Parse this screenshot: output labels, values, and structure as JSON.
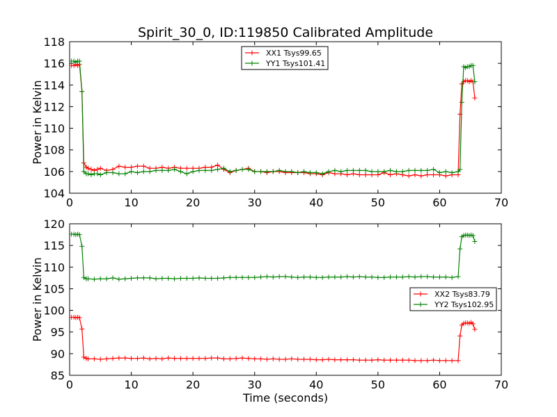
{
  "chart_data": [
    {
      "type": "line",
      "title": "Spirit_30_0, ID:119850 Calibrated Amplitude",
      "xlabel": "",
      "ylabel": "Power in Kelvin",
      "xlim": [
        0,
        70
      ],
      "ylim": [
        104,
        118
      ],
      "xticks": [
        "0",
        "10",
        "20",
        "30",
        "40",
        "50",
        "60",
        "70"
      ],
      "yticks": [
        "104",
        "106",
        "108",
        "110",
        "112",
        "114",
        "116",
        "118"
      ],
      "grid": false,
      "legend_position": "top-center",
      "series": [
        {
          "name": "XX1 Tsys99.65",
          "color": "#ff0000",
          "x": [
            0.3,
            0.7,
            1.0,
            1.3,
            1.6,
            2.0,
            2.3,
            2.7,
            3.0,
            3.5,
            4.0,
            4.5,
            5.0,
            6.0,
            7.0,
            8.0,
            9.0,
            10.0,
            11.0,
            12.0,
            13.0,
            14.0,
            15.0,
            16.0,
            17.0,
            18.0,
            19.0,
            20.0,
            21.0,
            22.0,
            23.0,
            24.0,
            25.0,
            26.0,
            27.0,
            28.0,
            29.0,
            30.0,
            31.0,
            32.0,
            33.0,
            34.0,
            35.0,
            36.0,
            37.0,
            38.0,
            39.0,
            40.0,
            41.0,
            42.0,
            43.0,
            44.0,
            45.0,
            46.0,
            47.0,
            48.0,
            49.0,
            50.0,
            51.0,
            52.0,
            53.0,
            54.0,
            55.0,
            56.0,
            57.0,
            58.0,
            59.0,
            60.0,
            61.0,
            62.0,
            63.0,
            63.3,
            63.6,
            63.9,
            64.2,
            64.5,
            64.8,
            65.1,
            65.4,
            65.7
          ],
          "y": [
            115.8,
            115.8,
            115.9,
            115.8,
            115.9,
            113.4,
            106.8,
            106.4,
            106.3,
            106.2,
            106.1,
            106.2,
            106.3,
            106.1,
            106.2,
            106.5,
            106.4,
            106.4,
            106.5,
            106.5,
            106.3,
            106.3,
            106.4,
            106.3,
            106.4,
            106.3,
            106.3,
            106.3,
            106.3,
            106.4,
            106.4,
            106.6,
            106.2,
            105.9,
            106.1,
            106.2,
            106.3,
            106.0,
            106.0,
            105.9,
            106.0,
            106.0,
            105.9,
            105.9,
            105.9,
            105.9,
            105.8,
            105.8,
            105.7,
            105.9,
            105.8,
            105.8,
            105.7,
            105.8,
            105.7,
            105.7,
            105.7,
            105.7,
            105.9,
            105.7,
            105.8,
            105.7,
            105.6,
            105.7,
            105.6,
            105.7,
            105.7,
            105.7,
            105.6,
            105.7,
            105.7,
            111.3,
            114.1,
            114.3,
            114.4,
            114.4,
            114.3,
            114.4,
            114.3,
            112.8
          ]
        },
        {
          "name": "YY1 Tsys101.41",
          "color": "#008000",
          "x": [
            0.3,
            0.7,
            1.0,
            1.3,
            1.6,
            2.0,
            2.3,
            2.7,
            3.0,
            3.5,
            4.0,
            4.5,
            5.0,
            6.0,
            7.0,
            8.0,
            9.0,
            10.0,
            11.0,
            12.0,
            13.0,
            14.0,
            15.0,
            16.0,
            17.0,
            18.0,
            19.0,
            20.0,
            21.0,
            22.0,
            23.0,
            24.0,
            25.0,
            26.0,
            27.0,
            28.0,
            29.0,
            30.0,
            31.0,
            32.0,
            33.0,
            34.0,
            35.0,
            36.0,
            37.0,
            38.0,
            39.0,
            40.0,
            41.0,
            42.0,
            43.0,
            44.0,
            45.0,
            46.0,
            47.0,
            48.0,
            49.0,
            50.0,
            51.0,
            52.0,
            53.0,
            54.0,
            55.0,
            56.0,
            57.0,
            58.0,
            59.0,
            60.0,
            61.0,
            62.0,
            63.0,
            63.3,
            63.6,
            63.9,
            64.2,
            64.5,
            64.8,
            65.1,
            65.4,
            65.7
          ],
          "y": [
            116.2,
            116.2,
            116.1,
            116.2,
            116.2,
            113.4,
            106.0,
            105.8,
            105.8,
            105.7,
            105.8,
            105.8,
            105.7,
            105.9,
            105.9,
            105.8,
            105.8,
            106.0,
            105.9,
            106.0,
            106.0,
            106.1,
            106.1,
            106.1,
            106.2,
            106.0,
            105.8,
            106.0,
            106.1,
            106.1,
            106.1,
            106.2,
            106.3,
            106.0,
            106.1,
            106.2,
            106.2,
            106.0,
            106.0,
            106.0,
            106.0,
            106.1,
            106.0,
            106.0,
            105.9,
            106.0,
            105.9,
            105.9,
            105.8,
            106.0,
            106.1,
            106.0,
            106.1,
            106.1,
            106.1,
            106.1,
            106.0,
            106.0,
            106.0,
            106.1,
            106.0,
            106.0,
            106.1,
            106.1,
            106.1,
            106.1,
            106.2,
            105.9,
            106.0,
            105.9,
            106.0,
            106.2,
            112.4,
            115.7,
            115.6,
            115.7,
            115.7,
            115.8,
            115.8,
            114.3
          ]
        }
      ]
    },
    {
      "type": "line",
      "title": "",
      "xlabel": "Time (seconds)",
      "ylabel": "Power in Kelvin",
      "xlim": [
        0,
        70
      ],
      "ylim": [
        85,
        120
      ],
      "xticks": [
        "0",
        "10",
        "20",
        "30",
        "40",
        "50",
        "60",
        "70"
      ],
      "yticks": [
        "85",
        "90",
        "95",
        "100",
        "105",
        "110",
        "115",
        "120"
      ],
      "grid": false,
      "legend_position": "right",
      "series": [
        {
          "name": "XX2 Tsys83.79",
          "color": "#ff0000",
          "x": [
            0.3,
            0.7,
            1.0,
            1.3,
            1.6,
            2.0,
            2.3,
            2.7,
            3.0,
            4.0,
            5.0,
            6.0,
            7.0,
            8.0,
            9.0,
            10.0,
            11.0,
            12.0,
            13.0,
            14.0,
            15.0,
            16.0,
            17.0,
            18.0,
            19.0,
            20.0,
            21.0,
            22.0,
            23.0,
            24.0,
            25.0,
            26.0,
            27.0,
            28.0,
            29.0,
            30.0,
            31.0,
            32.0,
            33.0,
            34.0,
            35.0,
            36.0,
            37.0,
            38.0,
            39.0,
            40.0,
            41.0,
            42.0,
            43.0,
            44.0,
            45.0,
            46.0,
            47.0,
            48.0,
            49.0,
            50.0,
            51.0,
            52.0,
            53.0,
            54.0,
            55.0,
            56.0,
            57.0,
            58.0,
            59.0,
            60.0,
            61.0,
            62.0,
            63.0,
            63.3,
            63.6,
            63.9,
            64.2,
            64.5,
            64.8,
            65.1,
            65.4,
            65.7
          ],
          "y": [
            98.4,
            98.4,
            98.3,
            98.4,
            98.3,
            95.7,
            89.2,
            88.9,
            88.8,
            88.8,
            88.7,
            88.8,
            88.9,
            89.0,
            89.0,
            88.9,
            88.9,
            89.0,
            88.8,
            88.9,
            88.8,
            89.0,
            88.9,
            88.9,
            88.9,
            88.9,
            88.9,
            88.9,
            89.0,
            89.0,
            88.8,
            88.8,
            88.9,
            89.0,
            88.9,
            88.8,
            88.8,
            88.7,
            88.8,
            88.7,
            88.7,
            88.8,
            88.7,
            88.7,
            88.7,
            88.6,
            88.6,
            88.7,
            88.6,
            88.6,
            88.6,
            88.6,
            88.5,
            88.5,
            88.5,
            88.6,
            88.5,
            88.5,
            88.5,
            88.5,
            88.5,
            88.4,
            88.4,
            88.4,
            88.5,
            88.4,
            88.4,
            88.4,
            88.4,
            94.1,
            96.6,
            97.0,
            97.1,
            97.1,
            97.0,
            97.2,
            96.9,
            95.6
          ]
        },
        {
          "name": "YY2 Tsys102.95",
          "color": "#008000",
          "x": [
            0.3,
            0.7,
            1.0,
            1.3,
            1.6,
            2.0,
            2.3,
            2.7,
            3.0,
            4.0,
            5.0,
            6.0,
            7.0,
            8.0,
            9.0,
            10.0,
            11.0,
            12.0,
            13.0,
            14.0,
            15.0,
            16.0,
            17.0,
            18.0,
            19.0,
            20.0,
            21.0,
            22.0,
            23.0,
            24.0,
            25.0,
            26.0,
            27.0,
            28.0,
            29.0,
            30.0,
            31.0,
            32.0,
            33.0,
            34.0,
            35.0,
            36.0,
            37.0,
            38.0,
            39.0,
            40.0,
            41.0,
            42.0,
            43.0,
            44.0,
            45.0,
            46.0,
            47.0,
            48.0,
            49.0,
            50.0,
            51.0,
            52.0,
            53.0,
            54.0,
            55.0,
            56.0,
            57.0,
            58.0,
            59.0,
            60.0,
            61.0,
            62.0,
            63.0,
            63.3,
            63.6,
            63.9,
            64.2,
            64.5,
            64.8,
            65.1,
            65.4,
            65.7
          ],
          "y": [
            117.6,
            117.6,
            117.5,
            117.6,
            117.5,
            114.8,
            107.6,
            107.3,
            107.3,
            107.2,
            107.3,
            107.3,
            107.5,
            107.2,
            107.3,
            107.4,
            107.5,
            107.5,
            107.5,
            107.3,
            107.4,
            107.4,
            107.3,
            107.4,
            107.4,
            107.4,
            107.5,
            107.4,
            107.4,
            107.4,
            107.5,
            107.6,
            107.6,
            107.6,
            107.6,
            107.6,
            107.7,
            107.8,
            107.7,
            107.8,
            107.8,
            107.7,
            107.6,
            107.7,
            107.7,
            107.6,
            107.6,
            107.7,
            107.7,
            107.7,
            107.8,
            107.7,
            107.8,
            107.7,
            107.7,
            107.6,
            107.6,
            107.7,
            107.7,
            107.7,
            107.8,
            107.7,
            107.8,
            107.8,
            107.7,
            107.7,
            107.7,
            107.6,
            107.8,
            114.2,
            117.0,
            117.3,
            117.4,
            117.4,
            117.3,
            117.4,
            117.3,
            115.9
          ]
        }
      ]
    }
  ]
}
